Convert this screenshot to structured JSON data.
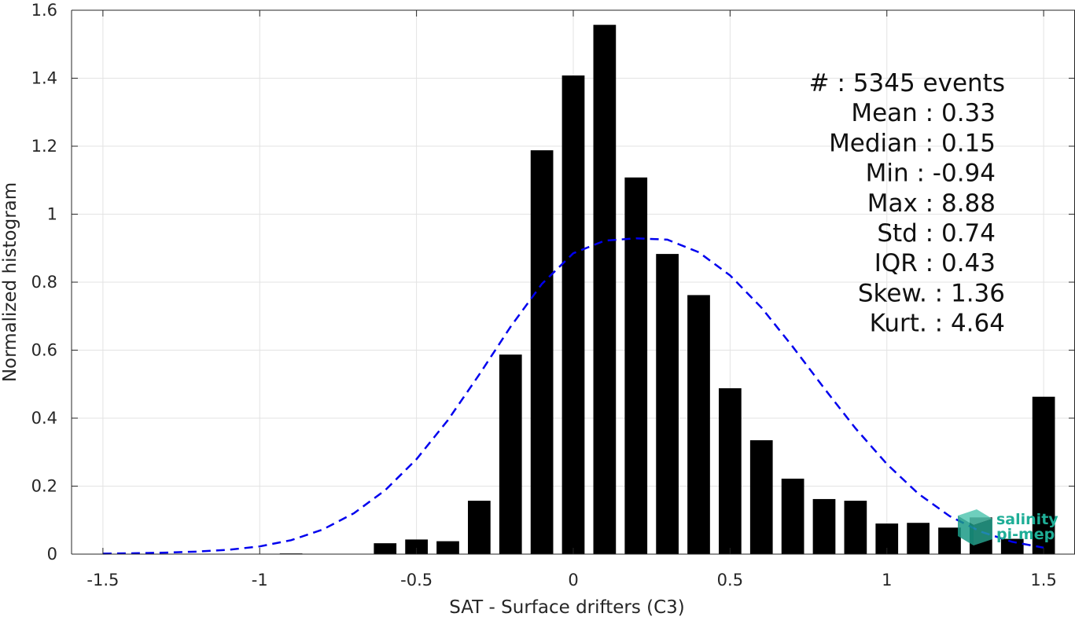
{
  "chart_data": {
    "type": "bar",
    "title": "",
    "xlabel": "SAT - Surface drifters (C3)",
    "ylabel": "Normalized histogram",
    "xlim": [
      -1.6,
      1.6
    ],
    "ylim": [
      0,
      1.6
    ],
    "xticks": [
      -1.5,
      -1,
      -0.5,
      0,
      0.5,
      1,
      1.5
    ],
    "xtick_labels": [
      "-1.5",
      "-1",
      "-0.5",
      "0",
      "0.5",
      "1",
      "1.5"
    ],
    "yticks": [
      0,
      0.2,
      0.4,
      0.6,
      0.8,
      1,
      1.2,
      1.4,
      1.6
    ],
    "ytick_labels": [
      "0",
      "0.2",
      "0.4",
      "0.6",
      "0.8",
      "1",
      "1.2",
      "1.4",
      "1.6"
    ],
    "grid": true,
    "bar_color": "#000000",
    "bin_width": 0.1,
    "bar_width_fraction": 0.72,
    "bins": [
      {
        "x": -0.9,
        "y": 0.002
      },
      {
        "x": -0.6,
        "y": 0.032
      },
      {
        "x": -0.5,
        "y": 0.043
      },
      {
        "x": -0.4,
        "y": 0.038
      },
      {
        "x": -0.3,
        "y": 0.157
      },
      {
        "x": -0.2,
        "y": 0.587
      },
      {
        "x": -0.1,
        "y": 1.188
      },
      {
        "x": 0.0,
        "y": 1.408
      },
      {
        "x": 0.1,
        "y": 1.557
      },
      {
        "x": 0.2,
        "y": 1.108
      },
      {
        "x": 0.3,
        "y": 0.883
      },
      {
        "x": 0.4,
        "y": 0.762
      },
      {
        "x": 0.5,
        "y": 0.488
      },
      {
        "x": 0.6,
        "y": 0.335
      },
      {
        "x": 0.7,
        "y": 0.222
      },
      {
        "x": 0.8,
        "y": 0.162
      },
      {
        "x": 0.9,
        "y": 0.157
      },
      {
        "x": 1.0,
        "y": 0.09
      },
      {
        "x": 1.1,
        "y": 0.092
      },
      {
        "x": 1.2,
        "y": 0.078
      },
      {
        "x": 1.3,
        "y": 0.108
      },
      {
        "x": 1.4,
        "y": 0.045
      },
      {
        "x": 1.5,
        "y": 0.463
      }
    ],
    "fit_curve": {
      "type": "gaussian",
      "color": "#0000ee",
      "style": "dashed",
      "points": [
        {
          "x": -1.5,
          "y": 0.0014
        },
        {
          "x": -1.4,
          "y": 0.0025
        },
        {
          "x": -1.3,
          "y": 0.0043
        },
        {
          "x": -1.2,
          "y": 0.0074
        },
        {
          "x": -1.1,
          "y": 0.0128
        },
        {
          "x": -1.0,
          "y": 0.0226
        },
        {
          "x": -0.9,
          "y": 0.041
        },
        {
          "x": -0.8,
          "y": 0.072
        },
        {
          "x": -0.7,
          "y": 0.12
        },
        {
          "x": -0.6,
          "y": 0.188
        },
        {
          "x": -0.5,
          "y": 0.279
        },
        {
          "x": -0.4,
          "y": 0.394
        },
        {
          "x": -0.3,
          "y": 0.528
        },
        {
          "x": -0.2,
          "y": 0.669
        },
        {
          "x": -0.1,
          "y": 0.795
        },
        {
          "x": 0.0,
          "y": 0.885
        },
        {
          "x": 0.1,
          "y": 0.922
        },
        {
          "x": 0.2,
          "y": 0.929
        },
        {
          "x": 0.3,
          "y": 0.925
        },
        {
          "x": 0.4,
          "y": 0.888
        },
        {
          "x": 0.5,
          "y": 0.82
        },
        {
          "x": 0.6,
          "y": 0.725
        },
        {
          "x": 0.7,
          "y": 0.61
        },
        {
          "x": 0.8,
          "y": 0.488
        },
        {
          "x": 0.9,
          "y": 0.37
        },
        {
          "x": 1.0,
          "y": 0.265
        },
        {
          "x": 1.1,
          "y": 0.178
        },
        {
          "x": 1.2,
          "y": 0.112
        },
        {
          "x": 1.3,
          "y": 0.066
        },
        {
          "x": 1.4,
          "y": 0.036
        },
        {
          "x": 1.5,
          "y": 0.019
        }
      ]
    },
    "stats": {
      "lines": [
        "#  : 5345 events",
        "Mean : 0.33",
        "Median : 0.15",
        "Min : -0.94",
        "Max : 8.88",
        "Std : 0.74",
        "IQR : 0.43",
        "Skew. : 1.36",
        "Kurt. : 4.64"
      ]
    }
  },
  "logo": {
    "line1": "salinity",
    "line2": "pi-mep",
    "color": "#1fae97"
  }
}
